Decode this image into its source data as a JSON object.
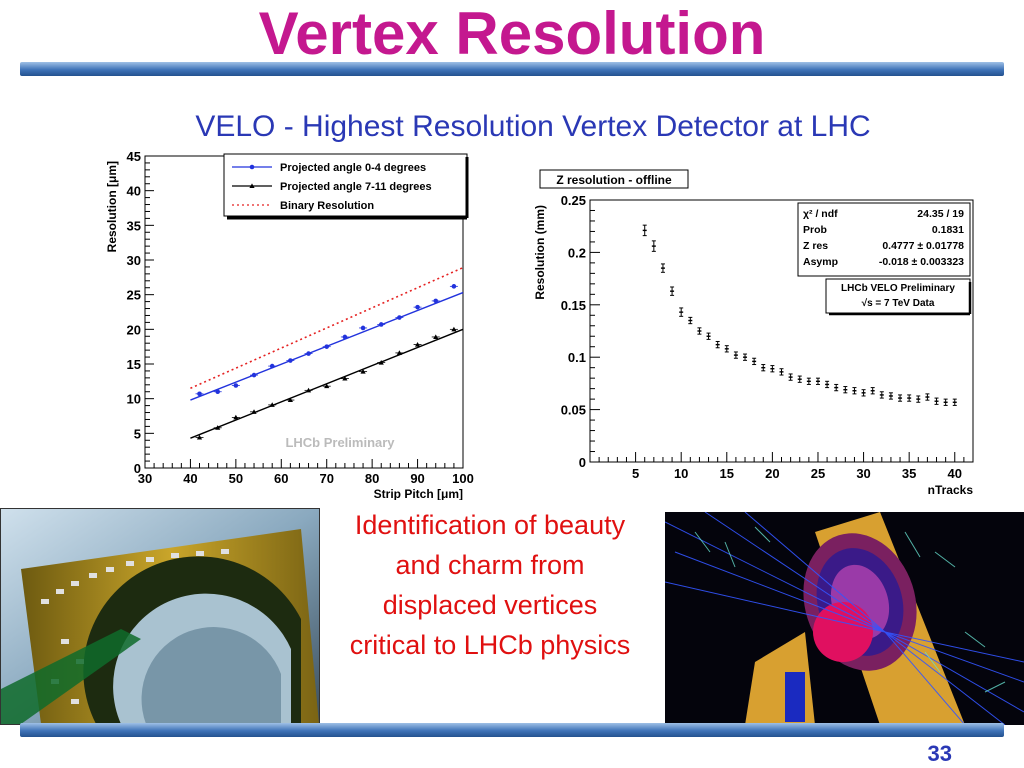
{
  "slide": {
    "title": "Vertex Resolution",
    "subtitle": "VELO - Highest Resolution Vertex Detector at LHC",
    "bullet": "Identification of beauty and charm from displaced vertices critical to LHCb physics",
    "page_number": "33"
  },
  "colors": {
    "title": "#c4188f",
    "subtitle": "#2a38b5",
    "bullet": "#e01010"
  },
  "images": {
    "left_photo": "velo-module-photo",
    "right_photo": "event-display-render"
  },
  "chart_data": [
    {
      "type": "line",
      "title": "",
      "xlabel": "Strip Pitch [μm]",
      "ylabel": "Resolution [μm]",
      "xlim": [
        30,
        100
      ],
      "ylim": [
        0,
        45
      ],
      "xticks": [
        30,
        40,
        50,
        60,
        70,
        80,
        90,
        100
      ],
      "yticks": [
        0,
        5,
        10,
        15,
        20,
        25,
        30,
        35,
        40,
        45
      ],
      "legend_position": "top-right",
      "watermark": "LHCb Preliminary",
      "series": [
        {
          "name": "Projected angle 0-4 degrees",
          "color": "#2233dd",
          "marker": "circle",
          "x": [
            42,
            46,
            50,
            54,
            58,
            62,
            66,
            70,
            74,
            78,
            82,
            86,
            90,
            94,
            98
          ],
          "y": [
            10.7,
            11.0,
            11.9,
            13.4,
            14.7,
            15.5,
            16.5,
            17.5,
            18.9,
            20.2,
            20.7,
            21.7,
            23.2,
            24.1,
            26.2
          ],
          "fit": {
            "x": [
              40,
              100
            ],
            "y": [
              9.8,
              25.3
            ]
          }
        },
        {
          "name": "Projected angle 7-11 degrees",
          "color": "#000000",
          "marker": "triangle",
          "x": [
            42,
            46,
            50,
            54,
            58,
            62,
            66,
            70,
            74,
            78,
            82,
            86,
            90,
            94,
            98
          ],
          "y": [
            4.4,
            5.8,
            7.3,
            8.1,
            9.1,
            9.8,
            11.2,
            11.8,
            12.9,
            13.9,
            15.2,
            16.6,
            17.8,
            18.9,
            20.0
          ],
          "fit": {
            "x": [
              40,
              100
            ],
            "y": [
              4.3,
              20.0
            ]
          }
        },
        {
          "name": "Binary Resolution",
          "color": "#e52222",
          "style": "dotted",
          "x": [
            40,
            100
          ],
          "y": [
            11.5,
            28.9
          ]
        }
      ]
    },
    {
      "type": "scatter",
      "title": "Z resolution - offline",
      "xlabel": "nTracks",
      "ylabel": "Resolution (mm)",
      "xlim": [
        0,
        42
      ],
      "ylim": [
        0,
        0.25
      ],
      "xticks": [
        5,
        10,
        15,
        20,
        25,
        30,
        35,
        40
      ],
      "yticks": [
        0,
        0.05,
        0.1,
        0.15,
        0.2,
        0.25
      ],
      "ytick_labels": [
        "0",
        "0.05",
        "0.1",
        "0.15",
        "0.2",
        "0.25"
      ],
      "stats_box": {
        "rows": [
          [
            "χ² / ndf",
            "24.35 / 19"
          ],
          [
            "Prob",
            "0.1831"
          ],
          [
            "Z res",
            "0.4777 ± 0.01778"
          ],
          [
            "Asymp",
            "-0.018 ± 0.003323"
          ]
        ]
      },
      "label_box": [
        "LHCb VELO Preliminary",
        "√s = 7 TeV Data"
      ],
      "series": [
        {
          "color": "#000000",
          "x": [
            6,
            7,
            8,
            9,
            10,
            11,
            12,
            13,
            14,
            15,
            16,
            17,
            18,
            19,
            20,
            21,
            22,
            23,
            24,
            25,
            26,
            27,
            28,
            29,
            30,
            31,
            32,
            33,
            34,
            35,
            36,
            37,
            38,
            39,
            40
          ],
          "y": [
            0.221,
            0.206,
            0.185,
            0.163,
            0.143,
            0.135,
            0.125,
            0.12,
            0.112,
            0.108,
            0.102,
            0.1,
            0.096,
            0.09,
            0.089,
            0.086,
            0.081,
            0.079,
            0.077,
            0.077,
            0.074,
            0.071,
            0.069,
            0.068,
            0.066,
            0.068,
            0.064,
            0.063,
            0.061,
            0.061,
            0.06,
            0.062,
            0.058,
            0.057,
            0.057
          ],
          "err": [
            0.005,
            0.005,
            0.004,
            0.004,
            0.004,
            0.003,
            0.003,
            0.003,
            0.003,
            0.003,
            0.003,
            0.003,
            0.003,
            0.003,
            0.003,
            0.003,
            0.003,
            0.003,
            0.003,
            0.003,
            0.003,
            0.003,
            0.003,
            0.003,
            0.003,
            0.003,
            0.003,
            0.003,
            0.003,
            0.003,
            0.003,
            0.003,
            0.003,
            0.003,
            0.003
          ]
        }
      ]
    }
  ]
}
